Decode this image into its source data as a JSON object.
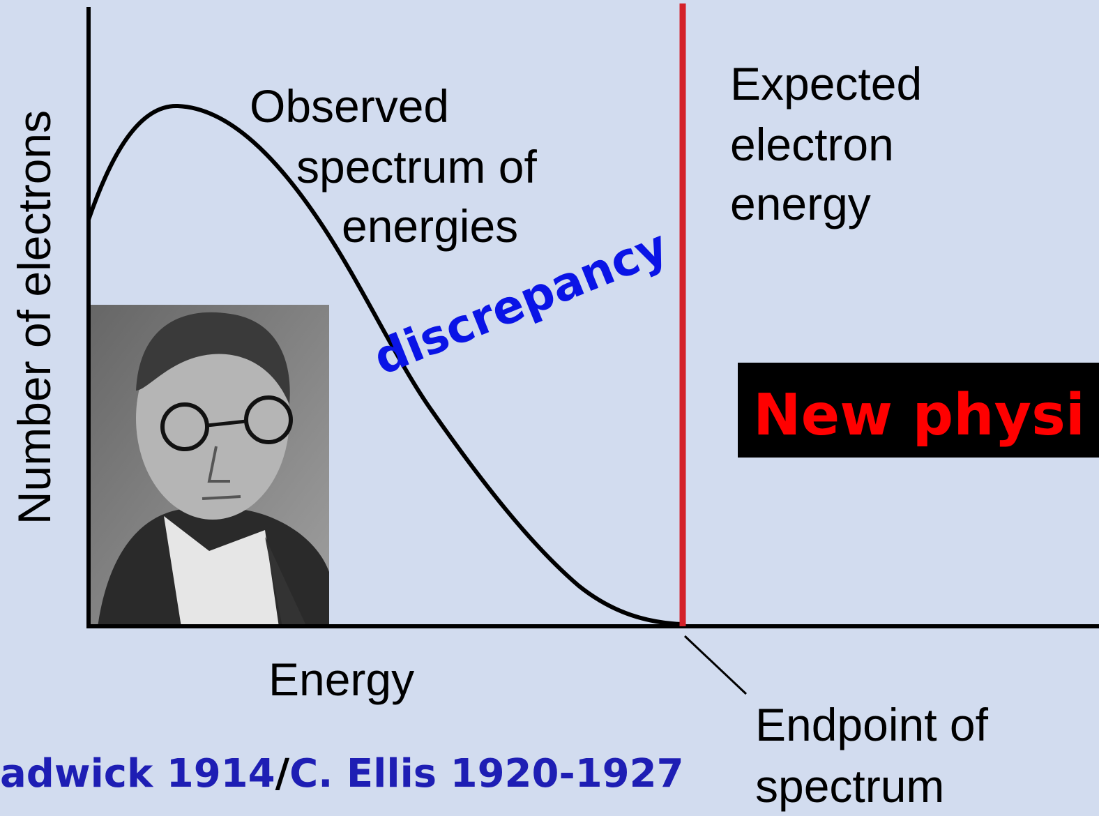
{
  "y_axis_label": "Number of electrons",
  "x_axis_label": "Energy",
  "observed_label": [
    "Observed",
    "spectrum of",
    "energies"
  ],
  "expected_label": [
    "Expected",
    "electron",
    "energy"
  ],
  "discrepancy_label": "discrepancy",
  "new_physics_label": "New physi",
  "endpoint_label": [
    "Endpoint of",
    "spectrum"
  ],
  "credit": [
    "adwick 1914",
    "/",
    "C. Ellis 1920-1927"
  ]
}
